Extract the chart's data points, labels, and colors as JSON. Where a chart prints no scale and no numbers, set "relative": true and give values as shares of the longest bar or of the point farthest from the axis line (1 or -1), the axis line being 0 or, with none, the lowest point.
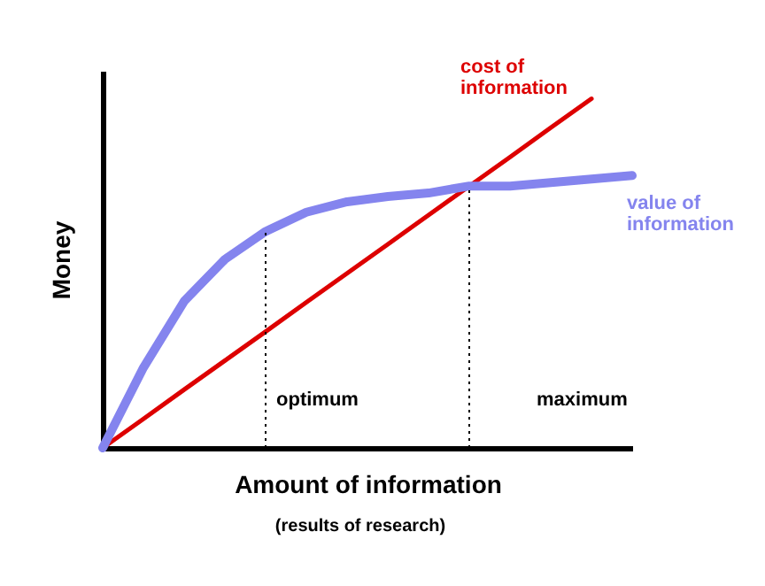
{
  "chart_data": {
    "type": "line",
    "xlabel": "Amount of information",
    "ylabel": "Money",
    "relative": true,
    "categories": [
      null,
      null,
      null,
      null,
      null,
      null,
      null,
      null,
      null,
      null,
      null,
      null,
      null,
      null
    ],
    "series": [
      {
        "name": "cost of information",
        "color": "#dd0000",
        "values": [
          0,
          0.083,
          0.167,
          0.25,
          0.333,
          0.417,
          0.5,
          0.583,
          0.667,
          0.75,
          0.833,
          0.917,
          1,
          null
        ]
      },
      {
        "name": "value of information",
        "color": "#8484ee",
        "values": [
          0,
          0.23,
          0.42,
          0.54,
          0.62,
          0.675,
          0.705,
          0.72,
          0.73,
          0.75,
          0.75,
          0.76,
          0.77,
          0.78
        ]
      }
    ],
    "annotations": [
      "optimum",
      "maximum",
      "(results of research)"
    ]
  }
}
